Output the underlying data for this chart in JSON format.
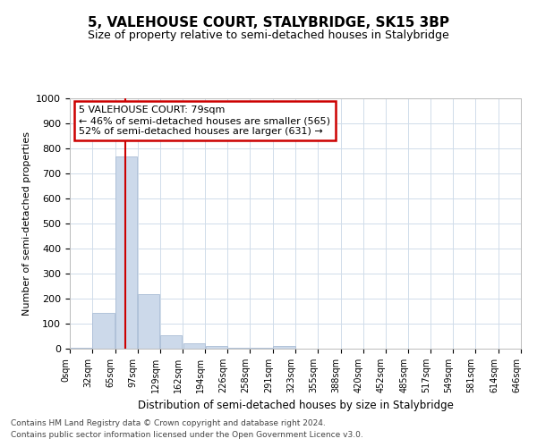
{
  "title": "5, VALEHOUSE COURT, STALYBRIDGE, SK15 3BP",
  "subtitle": "Size of property relative to semi-detached houses in Stalybridge",
  "xlabel": "Distribution of semi-detached houses by size in Stalybridge",
  "ylabel": "Number of semi-detached properties",
  "bar_color": "#ccd9ea",
  "bar_edge_color": "#aabdd6",
  "grid_color": "#d0dcea",
  "annotation_text": "5 VALEHOUSE COURT: 79sqm\n← 46% of semi-detached houses are smaller (565)\n52% of semi-detached houses are larger (631) →",
  "annotation_box_color": "#ffffff",
  "annotation_box_edge": "#cc0000",
  "vline_x": 79,
  "vline_color": "#cc0000",
  "bin_width": 32,
  "bin_starts": [
    0,
    32,
    65,
    97,
    129,
    162,
    194,
    226,
    258,
    291,
    323,
    355,
    388,
    420,
    452,
    485,
    517,
    549,
    581,
    614
  ],
  "bin_labels": [
    "0sqm",
    "32sqm",
    "65sqm",
    "97sqm",
    "129sqm",
    "162sqm",
    "194sqm",
    "226sqm",
    "258sqm",
    "291sqm",
    "323sqm",
    "355sqm",
    "388sqm",
    "420sqm",
    "452sqm",
    "485sqm",
    "517sqm",
    "549sqm",
    "581sqm",
    "614sqm",
    "646sqm"
  ],
  "bar_heights": [
    5,
    142,
    768,
    218,
    55,
    22,
    12,
    5,
    3,
    12,
    1,
    0,
    0,
    0,
    0,
    0,
    0,
    0,
    0,
    0
  ],
  "ylim": [
    0,
    1000
  ],
  "yticks": [
    0,
    100,
    200,
    300,
    400,
    500,
    600,
    700,
    800,
    900,
    1000
  ],
  "footer_line1": "Contains HM Land Registry data © Crown copyright and database right 2024.",
  "footer_line2": "Contains public sector information licensed under the Open Government Licence v3.0."
}
